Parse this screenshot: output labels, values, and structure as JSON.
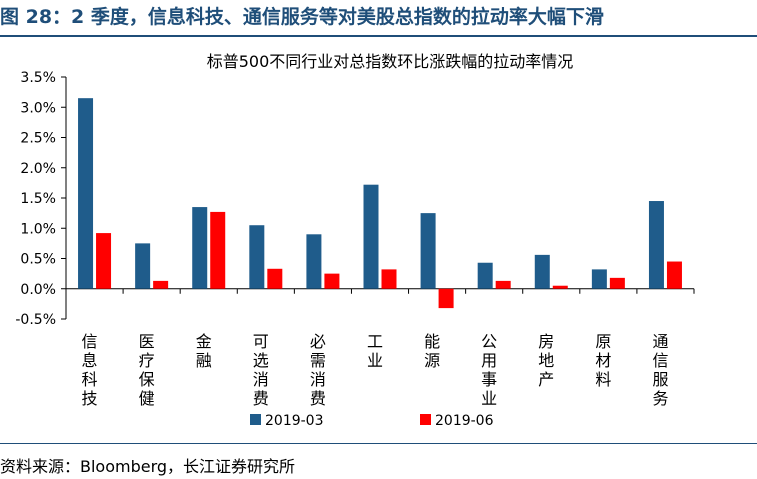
{
  "figure_title": "图 28：2 季度，信息科技、通信服务等对美股总指数的拉动率大幅下滑",
  "source_note": "资料来源：Bloomberg，长江证券研究所",
  "chart_data": {
    "type": "bar",
    "title": "标普500不同行业对总指数环比涨跌幅的拉动率情况",
    "categories": [
      "信息科技",
      "医疗保健",
      "金融",
      "可选消费",
      "必需消费",
      "工业",
      "能源",
      "公用事业",
      "房地产",
      "原材料",
      "通信服务"
    ],
    "series": [
      {
        "name": "2019-03",
        "color": "#1f5c8b",
        "values": [
          3.15,
          0.75,
          1.35,
          1.05,
          0.9,
          1.72,
          1.25,
          0.43,
          0.56,
          0.32,
          1.45
        ]
      },
      {
        "name": "2019-06",
        "color": "#ff0000",
        "values": [
          0.92,
          0.13,
          1.27,
          0.33,
          0.25,
          0.32,
          -0.32,
          0.13,
          0.05,
          0.18,
          0.45
        ]
      }
    ],
    "ylim": [
      -0.5,
      3.5
    ],
    "yticks": [
      -0.5,
      0.0,
      0.5,
      1.0,
      1.5,
      2.0,
      2.5,
      3.0,
      3.5
    ],
    "ytick_labels": [
      "-0.5%",
      "0.0%",
      "0.5%",
      "1.0%",
      "1.5%",
      "2.0%",
      "2.5%",
      "3.0%",
      "3.5%"
    ],
    "xlabel": "",
    "ylabel": "",
    "grid": false,
    "legend_position": "bottom"
  }
}
